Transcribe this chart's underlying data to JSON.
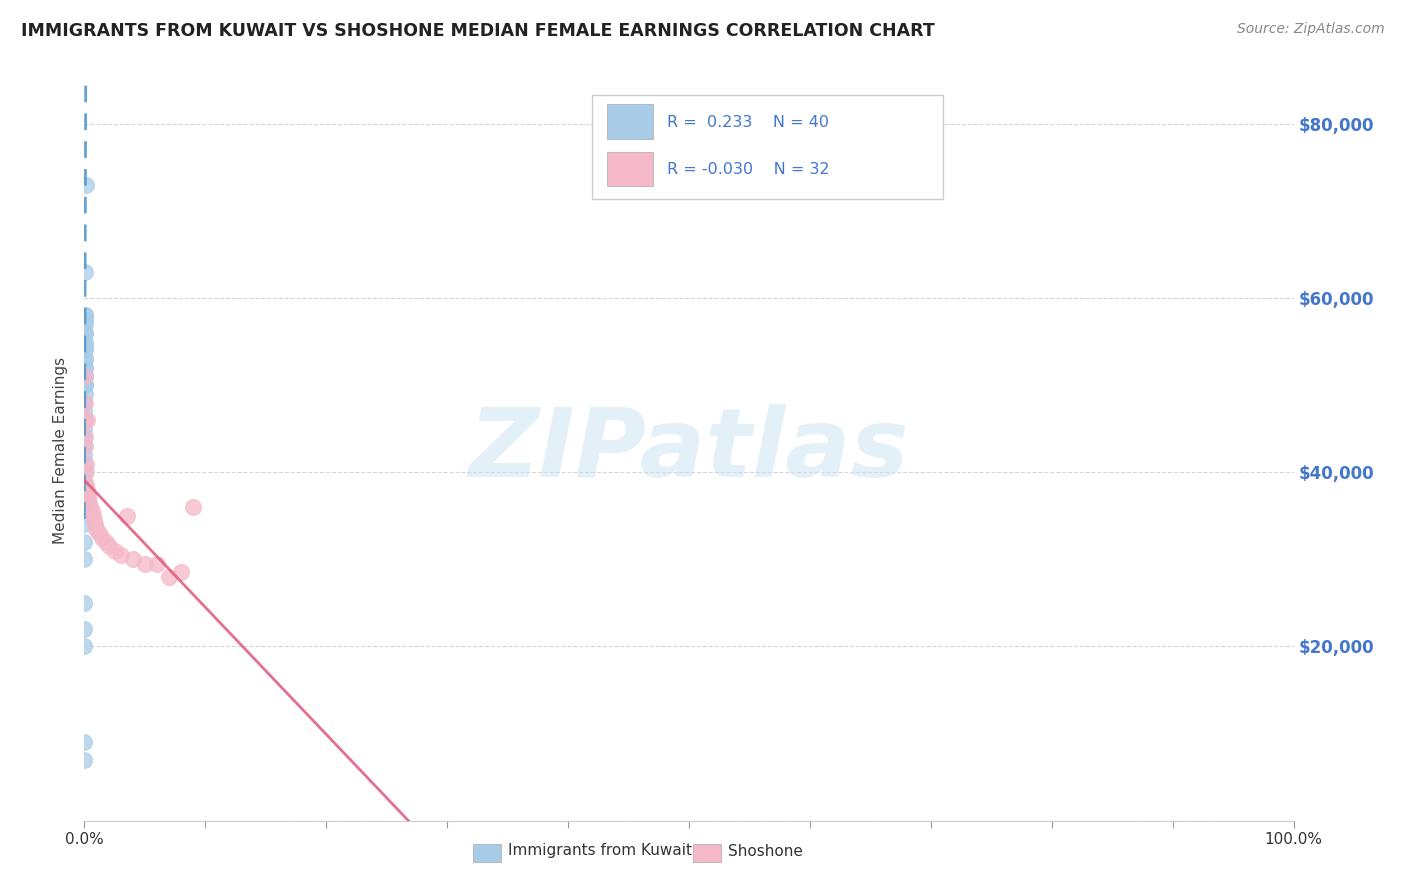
{
  "title": "IMMIGRANTS FROM KUWAIT VS SHOSHONE MEDIAN FEMALE EARNINGS CORRELATION CHART",
  "source": "Source: ZipAtlas.com",
  "ylabel": "Median Female Earnings",
  "legend_label1": "Immigrants from Kuwait",
  "legend_label2": "Shoshone",
  "r1": 0.233,
  "n1": 40,
  "r2": -0.03,
  "n2": 32,
  "yticks": [
    0,
    20000,
    40000,
    60000,
    80000
  ],
  "watermark": "ZIPatlas",
  "blue_color": "#a8cce8",
  "pink_color": "#f4b8c8",
  "blue_line_color": "#5599cc",
  "pink_line_color": "#e06080",
  "blue_scatter": [
    [
      0.001,
      73000
    ],
    [
      0.0008,
      63000
    ],
    [
      0.0006,
      58000
    ],
    [
      0.0005,
      57500
    ],
    [
      0.0005,
      56000
    ],
    [
      0.0004,
      54500
    ],
    [
      0.0004,
      53000
    ],
    [
      0.0003,
      52000
    ],
    [
      0.0003,
      51000
    ],
    [
      0.0003,
      50000
    ],
    [
      0.0002,
      58000
    ],
    [
      0.0002,
      57000
    ],
    [
      0.0002,
      56000
    ],
    [
      0.0002,
      55000
    ],
    [
      0.0002,
      54000
    ],
    [
      0.0002,
      53000
    ],
    [
      0.0002,
      52000
    ],
    [
      0.0002,
      51000
    ],
    [
      0.0002,
      50000
    ],
    [
      0.0002,
      49000
    ],
    [
      0.0001,
      48000
    ],
    [
      0.0001,
      47000
    ],
    [
      0.0001,
      46000
    ],
    [
      0.0001,
      45000
    ],
    [
      0.0001,
      44000
    ],
    [
      0.0001,
      43000
    ],
    [
      0.0001,
      42000
    ],
    [
      0.0001,
      41000
    ],
    [
      0.0001,
      40000
    ],
    [
      0.0001,
      39000
    ],
    [
      0.0001,
      38000
    ],
    [
      0.0001,
      36000
    ],
    [
      0.0001,
      34000
    ],
    [
      0.0001,
      32000
    ],
    [
      0.0001,
      30000
    ],
    [
      0.0001,
      25000
    ],
    [
      0.0001,
      22000
    ],
    [
      0.0001,
      20000
    ],
    [
      0.0001,
      9000
    ],
    [
      0.0001,
      7000
    ]
  ],
  "pink_scatter": [
    [
      0.0003,
      51000
    ],
    [
      0.0004,
      48000
    ],
    [
      0.0005,
      46000
    ],
    [
      0.0006,
      44000
    ],
    [
      0.0008,
      43000
    ],
    [
      0.001,
      41000
    ],
    [
      0.0012,
      40000
    ],
    [
      0.0015,
      38500
    ],
    [
      0.0018,
      46000
    ],
    [
      0.002,
      38000
    ],
    [
      0.003,
      37500
    ],
    [
      0.003,
      37000
    ],
    [
      0.004,
      36500
    ],
    [
      0.005,
      36000
    ],
    [
      0.006,
      35500
    ],
    [
      0.007,
      35000
    ],
    [
      0.008,
      34500
    ],
    [
      0.009,
      34000
    ],
    [
      0.01,
      33500
    ],
    [
      0.012,
      33000
    ],
    [
      0.015,
      32500
    ],
    [
      0.018,
      32000
    ],
    [
      0.02,
      31500
    ],
    [
      0.025,
      31000
    ],
    [
      0.03,
      30500
    ],
    [
      0.035,
      35000
    ],
    [
      0.04,
      30000
    ],
    [
      0.05,
      29500
    ],
    [
      0.06,
      29500
    ],
    [
      0.07,
      28000
    ],
    [
      0.08,
      28500
    ],
    [
      0.09,
      36000
    ]
  ],
  "xmin": 0.0,
  "xmax": 1.0,
  "ymin": 0,
  "ymax": 85000,
  "grid_color": "#cccccc",
  "title_color": "#222222",
  "right_tick_color": "#4477cc",
  "watermark_color": "#c5dff0",
  "watermark_alpha": 0.45
}
